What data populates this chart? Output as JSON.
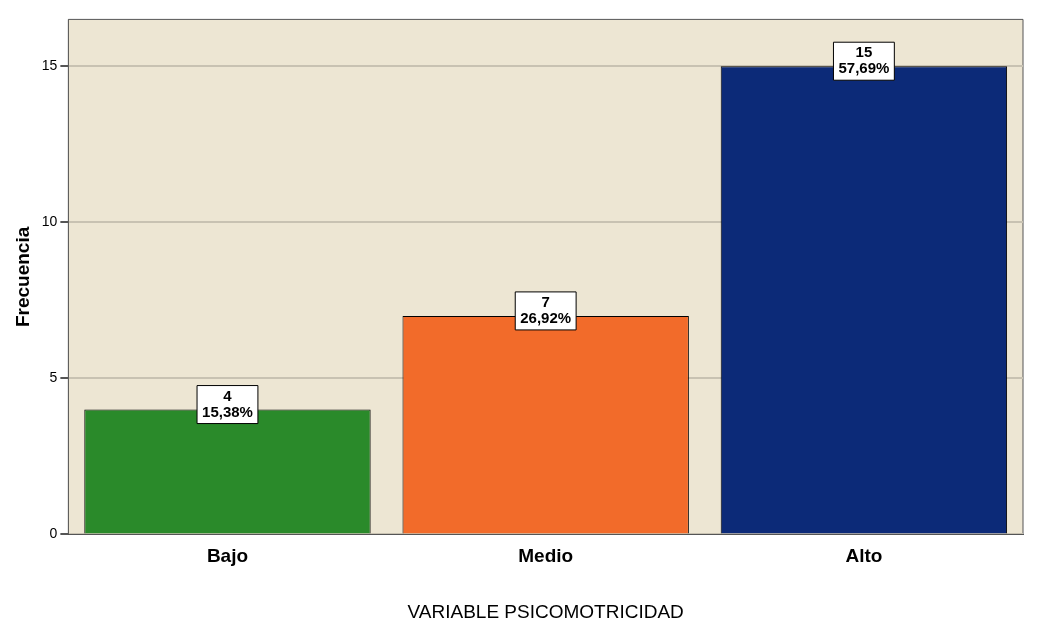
{
  "chart_data": {
    "type": "bar",
    "xlabel": "VARIABLE PSICOMOTRICIDAD",
    "ylabel": "Frecuencia",
    "categories": [
      "Bajo",
      "Medio",
      "Alto"
    ],
    "values": [
      4,
      7,
      15
    ],
    "colors": [
      "#2a8a2a",
      "#f26b2a",
      "#0c2a78"
    ],
    "value_labels": [
      "4\n15,38%",
      "7\n26,92%",
      "15\n57,69%"
    ],
    "ylim": [
      0,
      16.5
    ],
    "yticks": [
      0,
      5,
      10,
      15
    ],
    "grid": "y",
    "legend": false
  }
}
